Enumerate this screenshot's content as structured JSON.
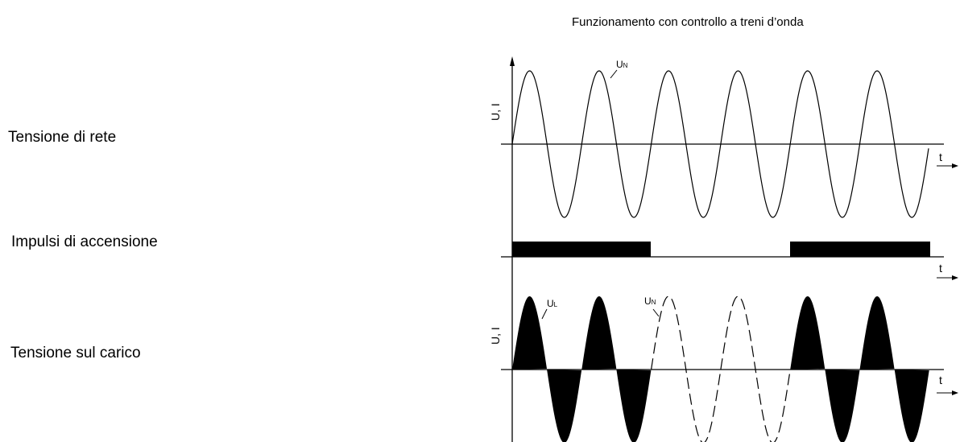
{
  "title": "Funzionamento con controllo a treni d’onda",
  "rows": {
    "mains_voltage": "Tensione di rete",
    "firing_pulses": "Impulsi di accensione",
    "load_voltage": "Tensione sul carico"
  },
  "axes": {
    "time_label": "t",
    "vertical_label": "U, I"
  },
  "curves": {
    "mains_label": "U",
    "mains_sub": "N",
    "load_label": "U",
    "load_sub": "L"
  },
  "waveform": {
    "cycles": 6,
    "conducting_cycles": [
      true,
      true,
      false,
      false,
      true,
      true
    ]
  }
}
